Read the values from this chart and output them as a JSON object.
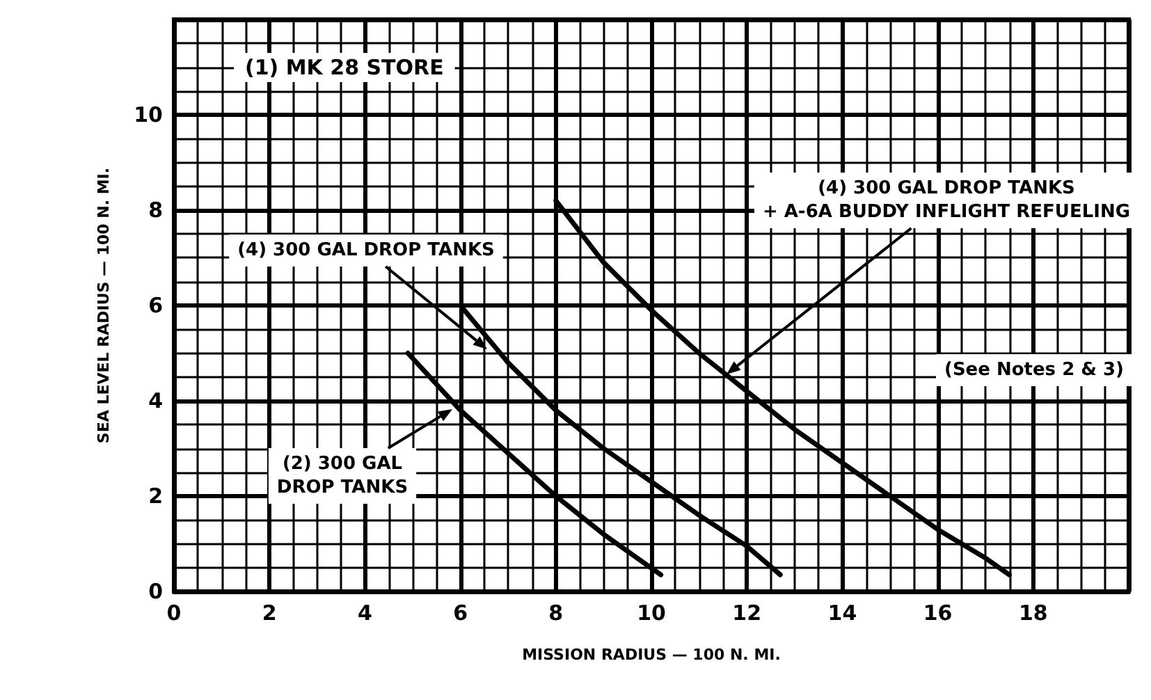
{
  "chart_data": {
    "type": "line",
    "title": "(1) MK 28 STORE",
    "xlabel": "MISSION RADIUS — 100 N. MI.",
    "ylabel": "SEA LEVEL RADIUS — 100 N. MI.",
    "series": [
      {
        "color": "#000000",
        "x": [
          4.9,
          6,
          7,
          8,
          9,
          10.2
        ],
        "values": [
          5.0,
          3.8,
          2.9,
          2.0,
          1.2,
          0.35
        ]
      },
      {
        "color": "#000000",
        "x": [
          6,
          7,
          8,
          9,
          10,
          11,
          12,
          12.7
        ],
        "values": [
          6.0,
          4.8,
          3.8,
          3.0,
          2.3,
          1.6,
          0.95,
          0.35
        ]
      },
      {
        "color": "#000000",
        "x": [
          8,
          9,
          10,
          11,
          12,
          13,
          14,
          15,
          16,
          17,
          17.5
        ],
        "values": [
          8.2,
          6.9,
          5.9,
          5.0,
          4.2,
          3.4,
          2.7,
          2.0,
          1.3,
          0.7,
          0.35
        ]
      }
    ],
    "xlim": [
      0,
      20
    ],
    "ylim": [
      0,
      12
    ],
    "xticks": [
      0,
      2,
      4,
      6,
      8,
      10,
      12,
      14,
      16,
      18
    ],
    "yticks": [
      0,
      2,
      4,
      6,
      8,
      10
    ],
    "grid": true,
    "marker": "none",
    "line_style": "solid",
    "annotations": [
      "(4) 300 GAL DROP TANKS",
      "(2) 300 GAL\nDROP TANKS",
      "(4) 300 GAL DROP TANKS\n+ A-6A BUDDY INFLIGHT REFUELING",
      "(See Notes 2 & 3)"
    ]
  }
}
